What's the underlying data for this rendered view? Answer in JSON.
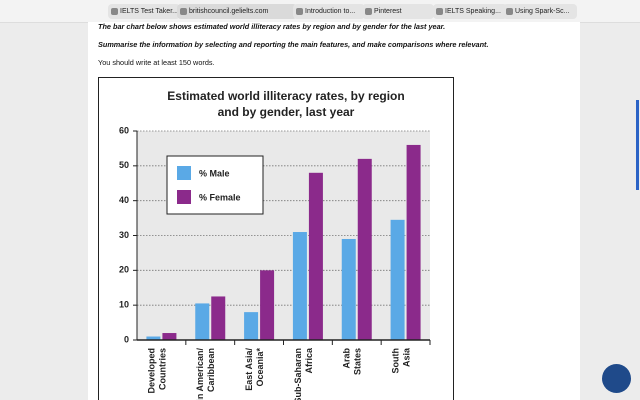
{
  "browser": {
    "tabs": [
      "IELTS Test Taker...",
      "britishcouncil.gelielts.com",
      "Introduction to...",
      "Pinterest",
      "IELTS Speaking...",
      "Using Spark-Sc..."
    ]
  },
  "task": {
    "line1": "The bar chart below shows estimated world illiteracy rates by region and by gender for the last year.",
    "line2": "Summarise the information by selecting and reporting the main features, and make comparisons where relevant.",
    "line3": "You should write at least 150 words."
  },
  "chart_data": {
    "type": "bar",
    "title": [
      "Estimated world illiteracy rates, by region",
      "and by gender, last year"
    ],
    "categories": [
      [
        "Developed",
        "Countries"
      ],
      [
        "Latin American/",
        "Caribbean"
      ],
      [
        "East Asia/",
        "Oceania*"
      ],
      [
        "Sub-Saharan",
        "Africa"
      ],
      [
        "Arab",
        "States"
      ],
      [
        "South",
        "Asia"
      ]
    ],
    "series": [
      {
        "name": "% Male",
        "color": "#5aa9e6",
        "values": [
          1,
          10.5,
          8,
          31,
          29,
          34.5
        ]
      },
      {
        "name": "% Female",
        "color": "#8b2a8b",
        "values": [
          2,
          12.5,
          20,
          48,
          52,
          56
        ]
      }
    ],
    "ylim": [
      0,
      60
    ],
    "yticks": [
      0,
      10,
      20,
      30,
      40,
      50,
      60
    ],
    "grid": true
  }
}
